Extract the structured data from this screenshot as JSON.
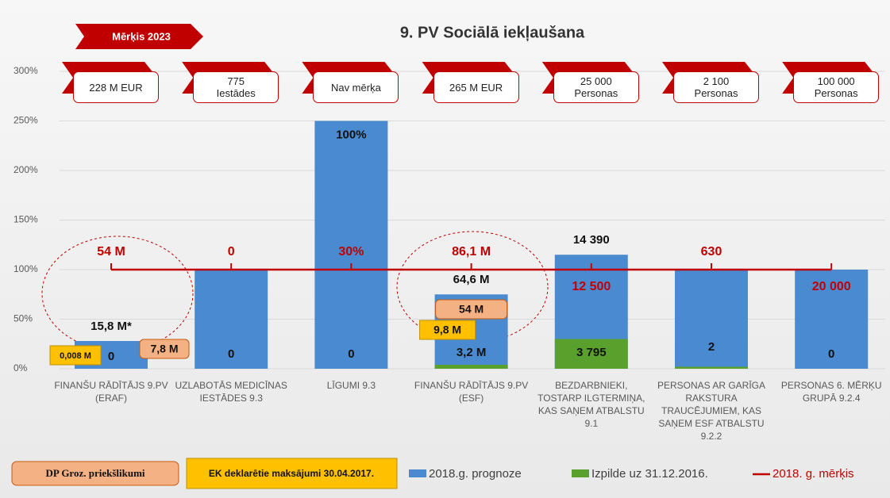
{
  "chart_data": {
    "type": "bar",
    "title": "9. PV Sociālā iekļaušana",
    "banner": "Mērķis 2023",
    "categories": [
      "FINANŠU RĀDĪTĀJS 9.PV (ERAF)",
      "UZLABOTĀS MEDICĪNAS IESTĀDES 9.3",
      "LĪGUMI 9.3",
      "FINANŠU RĀDĪTĀJS 9.PV (ESF)",
      "BEZDARBNIEKI, TOSTARP ILGTERMIŅA, KAS SAŅEM ATBALSTU 9.1",
      "PERSONAS AR GARĪGA RAKSTURA TRAUCĒJUMIEM, KAS SAŅEM ESF ATBALSTU 9.2.2",
      "PERSONAS 6. MĒRĶU GRUPĀ 9.2.4"
    ],
    "targets": [
      "228 M EUR",
      "775\nIestādes",
      "Nav mērķa",
      "265 M EUR",
      "25 000\nPersonas",
      "2 100\nPersonas",
      "100 000\nPersonas"
    ],
    "series": [
      {
        "name": "2018.g. prognoze",
        "color": "#4a8ad0",
        "values": [
          28,
          100,
          250,
          75,
          115,
          100,
          100
        ]
      },
      {
        "name": "Izpilde uz 31.12.2016.",
        "color": "#5aa02c",
        "values": [
          0,
          0,
          0,
          4,
          30,
          2,
          0
        ]
      },
      {
        "name": "2018. g. mērķis",
        "color": "#c00000",
        "values": [
          100,
          100,
          100,
          100,
          100,
          100,
          100
        ]
      }
    ],
    "bar_labels": [
      "15,8 M*",
      null,
      "100%",
      "64,6 M",
      "14 390",
      null,
      null
    ],
    "progress_labels": [
      "0",
      "0",
      "0",
      "3,2 M",
      "3 795",
      "2",
      "0"
    ],
    "goal_labels": [
      "54 M",
      "0",
      "30%",
      "86,1 M",
      "12 500",
      "630",
      "20 000"
    ],
    "proposals": [
      "7,8 M",
      null,
      null,
      "54 M",
      null,
      null,
      null
    ],
    "payments": [
      "0,008 M",
      null,
      null,
      "9,8 M",
      null,
      null,
      null
    ],
    "legend_boxes": [
      "DP Groz. priekšlikumi",
      "EK deklarētie maksājumi 30.04.2017."
    ],
    "ylim": [
      0,
      300
    ],
    "yticks": [
      {
        "value": 0,
        "label": "0%"
      },
      {
        "value": 50,
        "label": "50%"
      },
      {
        "value": 100,
        "label": "100%"
      },
      {
        "value": 150,
        "label": "150%"
      },
      {
        "value": 200,
        "label": "200%"
      },
      {
        "value": 250,
        "label": "250%"
      },
      {
        "value": 300,
        "label": "300%"
      }
    ],
    "grid": true
  }
}
